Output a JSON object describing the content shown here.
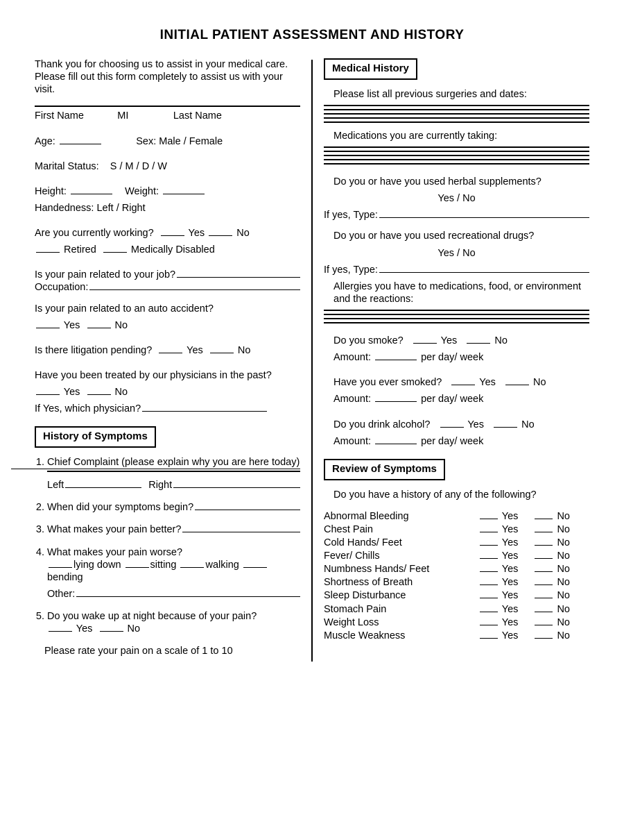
{
  "title": "INITIAL PATIENT ASSESSMENT AND HISTORY",
  "left": {
    "intro": "Thank you for choosing us to assist in your medical care. Please fill out this form completely to assist us with your visit.",
    "name_labels": {
      "first": "First Name",
      "mi": "MI",
      "last": "Last Name"
    },
    "age_label": "Age:",
    "sex_label": "Sex:",
    "sex_options": "Male / Female",
    "marital_label": "Marital Status:",
    "marital_options": "S / M / D / W",
    "height_label": "Height:",
    "weight_label": "Weight:",
    "handedness_label": "Handedness:",
    "handedness_options": "Left / Right",
    "working_q": "Are you currently working?",
    "yes": "Yes",
    "no": "No",
    "retired": "Retired",
    "med_disabled": "Medically Disabled",
    "pain_job_q": "Is your pain related to your job?",
    "occupation_label": "Occupation:",
    "pain_auto_q": "Is your pain related to an auto accident?",
    "litigation_q": "Is there litigation pending?",
    "treated_q": "Have you been treated by our physicians in the past?",
    "if_yes_phys": "If Yes, which physician?",
    "section_symptoms": "History of Symptoms",
    "q1": "Chief Complaint (please explain why you are here today)",
    "q1_left": "Left",
    "q1_right": "Right",
    "q2": "When did your symptoms begin?",
    "q3": "What makes your pain better?",
    "q4": "What makes your pain worse?",
    "q4_opts": {
      "a": "lying down",
      "b": "sitting",
      "c": "walking",
      "d": "bending"
    },
    "q4_other": "Other:",
    "q5": "Do you wake up at night because of your pain?",
    "pain_scale": "Please rate your pain on a scale of 1 to 10"
  },
  "right": {
    "section_medhist": "Medical History",
    "surgeries_q": "Please list all previous surgeries and dates:",
    "meds_q": "Medications you are currently taking:",
    "herbal_q": "Do you or have you used herbal supplements?",
    "yesno": "Yes / No",
    "if_yes_type": "If yes, Type:",
    "recdrugs_q": "Do you or have you used recreational drugs?",
    "allergies_q": "Allergies you have to medications, food, or environment and the reactions:",
    "smoke_q": "Do you smoke?",
    "amount_label": "Amount:",
    "per_dayweek": "per day/ week",
    "eversmoke_q": "Have you ever smoked?",
    "alcohol_q": "Do you drink alcohol?",
    "section_review": "Review of Symptoms",
    "review_intro": "Do you have a history of any of the following?",
    "review_items": [
      "Abnormal Bleeding",
      "Chest Pain",
      "Cold Hands/ Feet",
      "Fever/ Chills",
      "Numbness Hands/ Feet",
      "Shortness of Breath",
      "Sleep Disturbance",
      "Stomach Pain",
      "Weight Loss",
      "Muscle Weakness"
    ]
  },
  "tokens": {
    "yes": "Yes",
    "no": "No"
  }
}
